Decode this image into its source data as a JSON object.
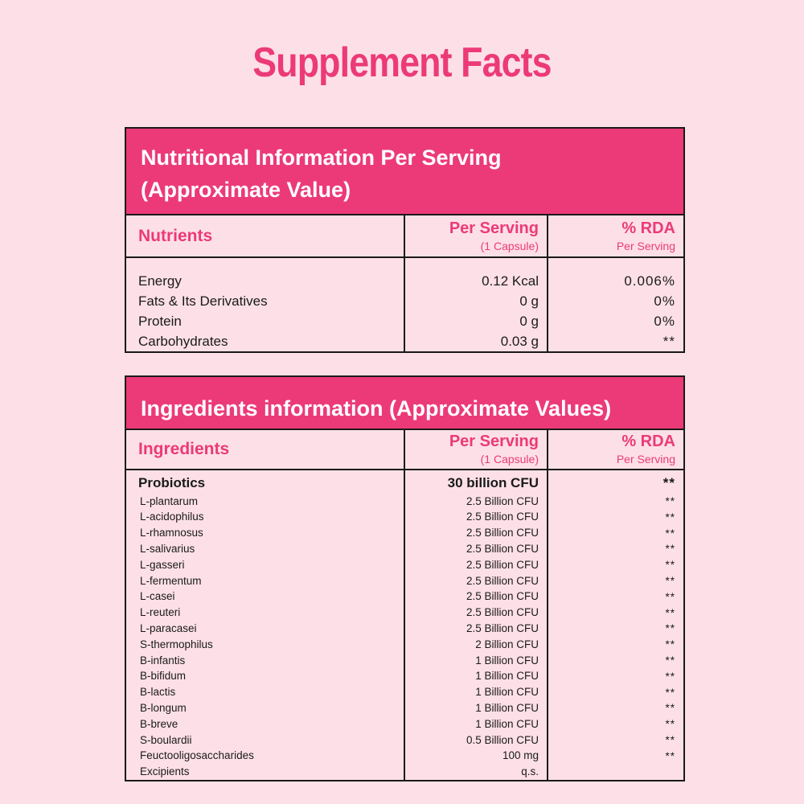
{
  "title": "Supplement Facts",
  "colors": {
    "accent": "#ec3a78",
    "background": "#fde0e7",
    "border": "#1a1a1a"
  },
  "nutrition": {
    "banner_line1": "Nutritional Information Per Serving",
    "banner_line2": "(Approximate Value)",
    "headers": {
      "col1": "Nutrients",
      "col2_main": "Per Serving",
      "col2_sub": "(1 Capsule)",
      "col3_main": "% RDA",
      "col3_sub": "Per Serving"
    },
    "rows": [
      {
        "name": "Energy",
        "per_serving": "0.12 Kcal",
        "rda": "0.006%"
      },
      {
        "name": "Fats & Its Derivatives",
        "per_serving": "0 g",
        "rda": "0%"
      },
      {
        "name": "Protein",
        "per_serving": "0 g",
        "rda": "0%"
      },
      {
        "name": "Carbohydrates",
        "per_serving": "0.03 g",
        "rda": "**"
      }
    ]
  },
  "ingredients": {
    "banner": "Ingredients information (Approximate Values)",
    "headers": {
      "col1": "Ingredients",
      "col2_main": "Per Serving",
      "col2_sub": "(1 Capsule)",
      "col3_main": "% RDA",
      "col3_sub": "Per Serving"
    },
    "rows": [
      {
        "name": "Probiotics",
        "per_serving": "30 billion CFU",
        "rda": "**"
      },
      {
        "name": "L-plantarum",
        "per_serving": "2.5 Billion CFU",
        "rda": "**"
      },
      {
        "name": "L-acidophilus",
        "per_serving": "2.5 Billion CFU",
        "rda": "**"
      },
      {
        "name": "L-rhamnosus",
        "per_serving": "2.5 Billion CFU",
        "rda": "**"
      },
      {
        "name": "L-salivarius",
        "per_serving": "2.5 Billion CFU",
        "rda": "**"
      },
      {
        "name": "L-gasseri",
        "per_serving": "2.5 Billion CFU",
        "rda": "**"
      },
      {
        "name": "L-fermentum",
        "per_serving": "2.5 Billion CFU",
        "rda": "**"
      },
      {
        "name": "L-casei",
        "per_serving": "2.5 Billion CFU",
        "rda": "**"
      },
      {
        "name": "L-reuteri",
        "per_serving": "2.5 Billion CFU",
        "rda": "**"
      },
      {
        "name": "L-paracasei",
        "per_serving": "2.5 Billion CFU",
        "rda": "**"
      },
      {
        "name": "S-thermophilus",
        "per_serving": "2 Billion CFU",
        "rda": "**"
      },
      {
        "name": "B-infantis",
        "per_serving": "1 Billion CFU",
        "rda": "**"
      },
      {
        "name": "B-bifidum",
        "per_serving": "1 Billion CFU",
        "rda": "**"
      },
      {
        "name": "B-lactis",
        "per_serving": "1 Billion CFU",
        "rda": "**"
      },
      {
        "name": "B-longum",
        "per_serving": "1 Billion CFU",
        "rda": "**"
      },
      {
        "name": "B-breve",
        "per_serving": "1 Billion CFU",
        "rda": "**"
      },
      {
        "name": "S-boulardii",
        "per_serving": "0.5 Billion CFU",
        "rda": "**"
      },
      {
        "name": "Feuctooligosaccharides",
        "per_serving": "100 mg",
        "rda": "**"
      },
      {
        "name": "Excipients",
        "per_serving": "q.s.",
        "rda": ""
      }
    ]
  }
}
